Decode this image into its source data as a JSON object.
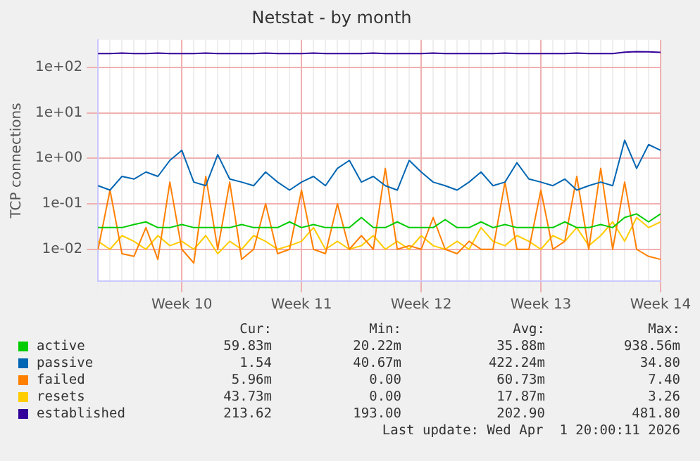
{
  "chart_data": {
    "type": "line",
    "title": "Netstat - by month",
    "ylabel": "TCP connections",
    "log": "y",
    "grid": true,
    "legend": "bottom",
    "categories": [
      null,
      null,
      null,
      null,
      null,
      null,
      null,
      "Week 10",
      null,
      null,
      null,
      null,
      null,
      null,
      null,
      null,
      null,
      "Week 11",
      null,
      null,
      null,
      null,
      null,
      null,
      null,
      null,
      null,
      "Week 12",
      null,
      null,
      null,
      null,
      null,
      null,
      null,
      null,
      null,
      "Week 13",
      null,
      null,
      null,
      null,
      null,
      null,
      null,
      null,
      null,
      "Week 14"
    ],
    "ylim": [
      0.002,
      400
    ],
    "yticks": [
      {
        "value": 0.01,
        "label": "1e-02"
      },
      {
        "value": 0.1,
        "label": "1e-01"
      },
      {
        "value": 1,
        "label": "1e+00"
      },
      {
        "value": 10,
        "label": "1e+01"
      },
      {
        "value": 100,
        "label": "1e+02"
      }
    ],
    "series": [
      {
        "name": "active",
        "color": "#00cc00",
        "values": [
          0.03,
          0.03,
          0.03,
          0.035,
          0.04,
          0.03,
          0.03,
          0.035,
          0.03,
          0.03,
          0.03,
          0.03,
          0.035,
          0.03,
          0.03,
          0.03,
          0.04,
          0.03,
          0.035,
          0.03,
          0.03,
          0.03,
          0.05,
          0.03,
          0.03,
          0.04,
          0.03,
          0.03,
          0.03,
          0.045,
          0.03,
          0.03,
          0.04,
          0.03,
          0.035,
          0.03,
          0.03,
          0.03,
          0.03,
          0.04,
          0.03,
          0.03,
          0.035,
          0.03,
          0.05,
          0.06,
          0.04,
          0.06
        ]
      },
      {
        "name": "passive",
        "color": "#0066b3",
        "values": [
          0.25,
          0.2,
          0.4,
          0.35,
          0.5,
          0.4,
          0.9,
          1.5,
          0.3,
          0.25,
          1.2,
          0.35,
          0.3,
          0.25,
          0.5,
          0.3,
          0.2,
          0.3,
          0.4,
          0.25,
          0.6,
          0.9,
          0.3,
          0.4,
          0.25,
          0.2,
          0.9,
          0.5,
          0.3,
          0.25,
          0.2,
          0.3,
          0.5,
          0.25,
          0.3,
          0.8,
          0.35,
          0.3,
          0.25,
          0.35,
          0.2,
          0.25,
          0.3,
          0.25,
          2.5,
          0.6,
          2,
          1.5
        ]
      },
      {
        "name": "failed",
        "color": "#ff8000",
        "values": [
          0.01,
          0.2,
          0.008,
          0.007,
          0.03,
          0.006,
          0.3,
          0.01,
          0.005,
          0.4,
          0.01,
          0.3,
          0.006,
          0.01,
          0.1,
          0.008,
          0.01,
          0.2,
          0.01,
          0.008,
          0.1,
          0.01,
          0.02,
          0.01,
          0.6,
          0.01,
          0.012,
          0.01,
          0.05,
          0.01,
          0.008,
          0.015,
          0.01,
          0.01,
          0.3,
          0.01,
          0.01,
          0.2,
          0.01,
          0.015,
          0.4,
          0.01,
          0.6,
          0.01,
          0.3,
          0.01,
          0.007,
          0.006
        ]
      },
      {
        "name": "resets",
        "color": "#ffcc00",
        "values": [
          0.015,
          0.01,
          0.02,
          0.015,
          0.01,
          0.02,
          0.012,
          0.015,
          0.01,
          0.02,
          0.008,
          0.015,
          0.01,
          0.02,
          0.015,
          0.01,
          0.012,
          0.015,
          0.03,
          0.01,
          0.015,
          0.01,
          0.012,
          0.02,
          0.01,
          0.015,
          0.01,
          0.02,
          0.012,
          0.01,
          0.015,
          0.01,
          0.03,
          0.015,
          0.012,
          0.02,
          0.015,
          0.01,
          0.02,
          0.015,
          0.03,
          0.012,
          0.02,
          0.04,
          0.015,
          0.05,
          0.03,
          0.04
        ]
      },
      {
        "name": "established",
        "color": "#330099",
        "values": [
          200,
          200,
          205,
          200,
          200,
          205,
          200,
          200,
          200,
          205,
          200,
          200,
          200,
          200,
          205,
          200,
          200,
          200,
          205,
          200,
          200,
          200,
          200,
          205,
          200,
          200,
          200,
          200,
          205,
          200,
          200,
          200,
          200,
          200,
          205,
          200,
          200,
          200,
          200,
          200,
          205,
          200,
          200,
          200,
          215,
          220,
          218,
          213
        ]
      }
    ],
    "annotations": [
      "Cur:",
      "Min:",
      "Avg:",
      "Max:",
      "59.83m",
      "20.22m",
      "35.88m",
      "938.56m",
      "1.54",
      "40.67m",
      "422.24m",
      "34.80",
      "5.96m",
      "0.00",
      "60.73m",
      "7.40",
      "43.73m",
      "0.00",
      "17.87m",
      "3.26",
      "213.62",
      "193.00",
      "202.90",
      "481.80",
      "Last update: Wed Apr  1 20:00:11 2026"
    ]
  }
}
